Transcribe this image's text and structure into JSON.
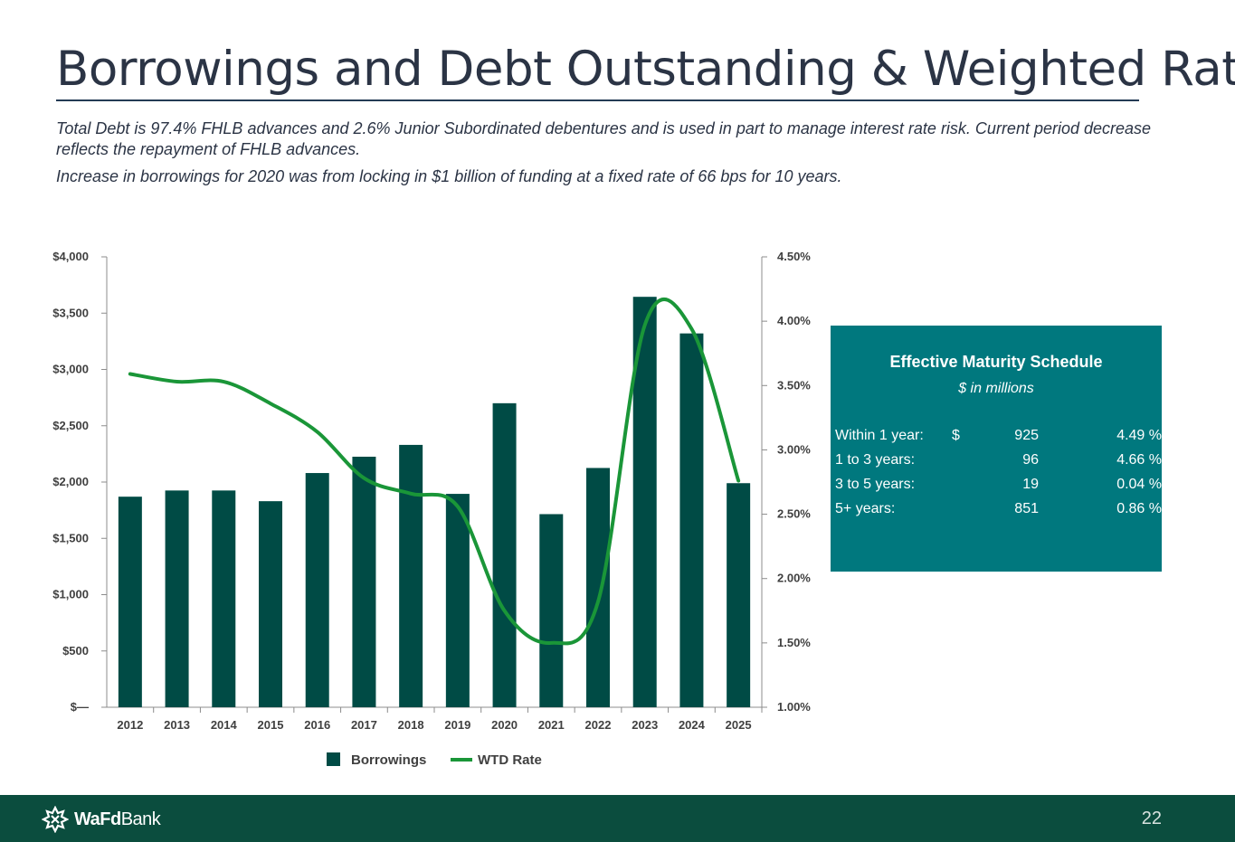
{
  "title": "Borrowings and Debt Outstanding & Weighted Rate",
  "subtitle1": "Total Debt is 97.4% FHLB advances and 2.6% Junior Subordinated debentures and is used in part to manage interest rate risk. Current period decrease reflects the repayment of FHLB advances.",
  "subtitle2": "Increase in borrowings for 2020 was from locking in $1 billion of funding at a fixed rate of 66 bps for 10 years.",
  "chart_data": {
    "type": "bar",
    "categories": [
      "2012",
      "2013",
      "2014",
      "2015",
      "2016",
      "2017",
      "2018",
      "2019",
      "2020",
      "2021",
      "2022",
      "2023",
      "2024",
      "2025"
    ],
    "series": [
      {
        "name": "Borrowings",
        "type": "bar",
        "axis": "left",
        "color": "#004b45",
        "values": [
          1870,
          1925,
          1925,
          1830,
          2080,
          2225,
          2330,
          1895,
          2700,
          1715,
          2125,
          3645,
          3320,
          1990
        ]
      },
      {
        "name": "WTD Rate",
        "type": "line",
        "axis": "right",
        "color": "#1a9638",
        "values": [
          3.59,
          3.53,
          3.53,
          3.36,
          3.14,
          2.78,
          2.66,
          2.56,
          1.75,
          1.5,
          1.82,
          3.97,
          3.94,
          2.76
        ]
      }
    ],
    "y_left": {
      "min": 0,
      "max": 4000,
      "ticks": [
        0,
        500,
        1000,
        1500,
        2000,
        2500,
        3000,
        3500,
        4000
      ],
      "tick_labels": [
        "$—",
        "$500",
        "$1,000",
        "$1,500",
        "$2,000",
        "$2,500",
        "$3,000",
        "$3,500",
        "$4,000"
      ]
    },
    "y_right": {
      "min": 1.0,
      "max": 4.5,
      "ticks": [
        1.0,
        1.5,
        2.0,
        2.5,
        3.0,
        3.5,
        4.0,
        4.5
      ],
      "tick_labels": [
        "1.00%",
        "1.50%",
        "2.00%",
        "2.50%",
        "3.00%",
        "3.50%",
        "4.00%",
        "4.50%"
      ]
    },
    "legend": [
      "Borrowings",
      "WTD Rate"
    ],
    "legend_position": "bottom"
  },
  "maturity": {
    "title": "Effective Maturity Schedule",
    "subtitle": "$ in millions",
    "rows": [
      {
        "label": "Within 1 year:",
        "dollar": "$",
        "amount": "925",
        "rate": "4.49 %"
      },
      {
        "label": "1 to 3 years:",
        "dollar": "",
        "amount": "96",
        "rate": "4.66 %"
      },
      {
        "label": "3 to 5 years:",
        "dollar": "",
        "amount": "19",
        "rate": "0.04 %"
      },
      {
        "label": "5+ years:",
        "dollar": "",
        "amount": "851",
        "rate": "0.86 %"
      }
    ]
  },
  "footer": {
    "logo_bold": "WaFd",
    "logo_light": "Bank",
    "page_number": "22"
  },
  "colors": {
    "bar": "#004b45",
    "line": "#1a9638",
    "box": "#00787e",
    "footer": "#0b4d3e"
  }
}
